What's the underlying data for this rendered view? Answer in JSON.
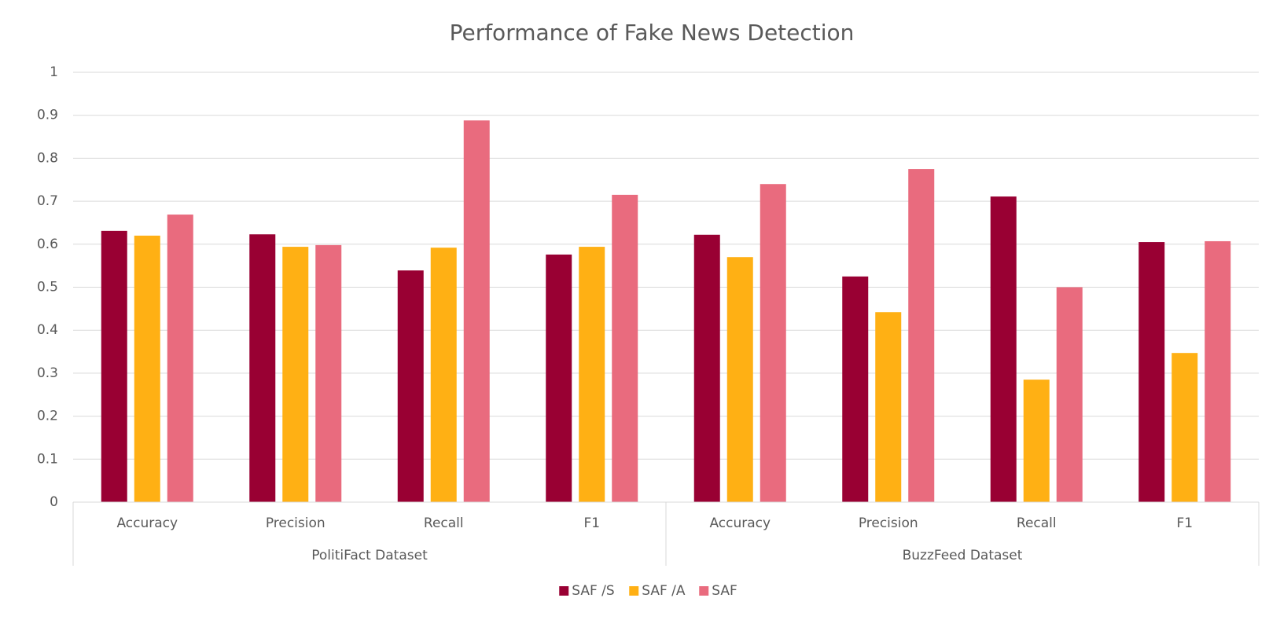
{
  "chart_data": {
    "type": "bar",
    "title": "Performance of Fake News Detection",
    "groups": [
      {
        "name": "PolitiFact Dataset",
        "categories": [
          "Accuracy",
          "Precision",
          "Recall",
          "F1"
        ]
      },
      {
        "name": "BuzzFeed Dataset",
        "categories": [
          "Accuracy",
          "Precision",
          "Recall",
          "F1"
        ]
      }
    ],
    "series": [
      {
        "name": "SAF /S",
        "color": "#990033",
        "values": [
          0.631,
          0.623,
          0.539,
          0.576,
          0.622,
          0.525,
          0.711,
          0.605
        ]
      },
      {
        "name": "SAF /A",
        "color": "#ffb014",
        "values": [
          0.62,
          0.594,
          0.592,
          0.594,
          0.57,
          0.442,
          0.285,
          0.347
        ]
      },
      {
        "name": "SAF",
        "color": "#e96b7e",
        "values": [
          0.669,
          0.598,
          0.888,
          0.715,
          0.74,
          0.775,
          0.5,
          0.607
        ]
      }
    ],
    "ylim": [
      0,
      1
    ],
    "yticks": [
      0,
      0.1,
      0.2,
      0.3,
      0.4,
      0.5,
      0.6,
      0.7,
      0.8,
      0.9,
      1
    ],
    "grid": true,
    "legend": "bottom"
  }
}
